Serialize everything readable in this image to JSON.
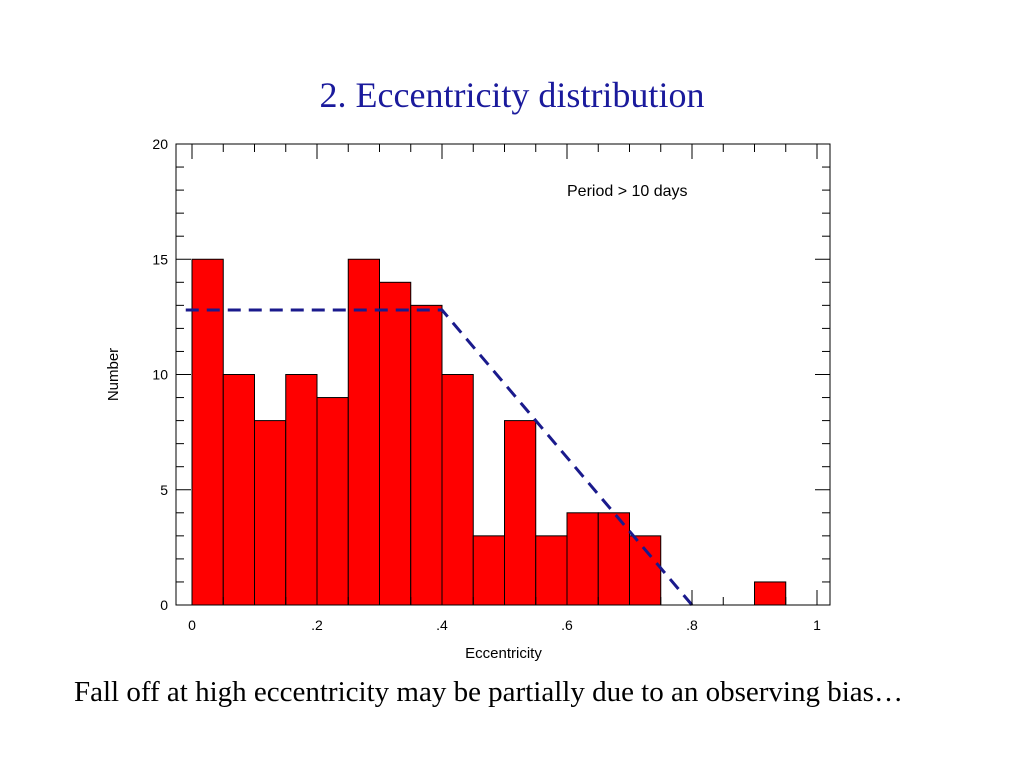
{
  "slide": {
    "title": "2. Eccentricity distribution",
    "caption": "Fall off at high eccentricity may be partially due to an observing bias…"
  },
  "colors": {
    "bar_fill": "#ff0000",
    "fit_line": "#1a1a8c",
    "title": "#1a1a9c"
  },
  "chart_data": {
    "type": "bar",
    "title": "",
    "xlabel": "Eccentricity",
    "ylabel": "Number",
    "xlim": [
      0,
      1
    ],
    "ylim": [
      0,
      20
    ],
    "bin_width": 0.05,
    "x_ticks": [
      0,
      0.2,
      0.4,
      0.6,
      0.8,
      1
    ],
    "x_tick_labels": [
      "0",
      ".2",
      ".4",
      ".6",
      ".8",
      "1"
    ],
    "y_ticks": [
      0,
      5,
      10,
      15,
      20
    ],
    "y_tick_labels": [
      "0",
      "5",
      "10",
      "15",
      "20"
    ],
    "bins": [
      0,
      0.05,
      0.1,
      0.15,
      0.2,
      0.25,
      0.3,
      0.35,
      0.4,
      0.45,
      0.5,
      0.55,
      0.6,
      0.65,
      0.7,
      0.75,
      0.8,
      0.85,
      0.9,
      0.95
    ],
    "values": [
      15,
      10,
      8,
      10,
      9,
      15,
      14,
      13,
      10,
      3,
      8,
      3,
      4,
      4,
      3,
      0,
      0,
      0,
      1,
      0
    ],
    "annotation": "Period > 10 days",
    "fit_line": {
      "style": "dashed",
      "points": [
        [
          -0.01,
          12.8
        ],
        [
          0.4,
          12.8
        ],
        [
          0.8,
          0
        ]
      ]
    },
    "grid": false
  }
}
